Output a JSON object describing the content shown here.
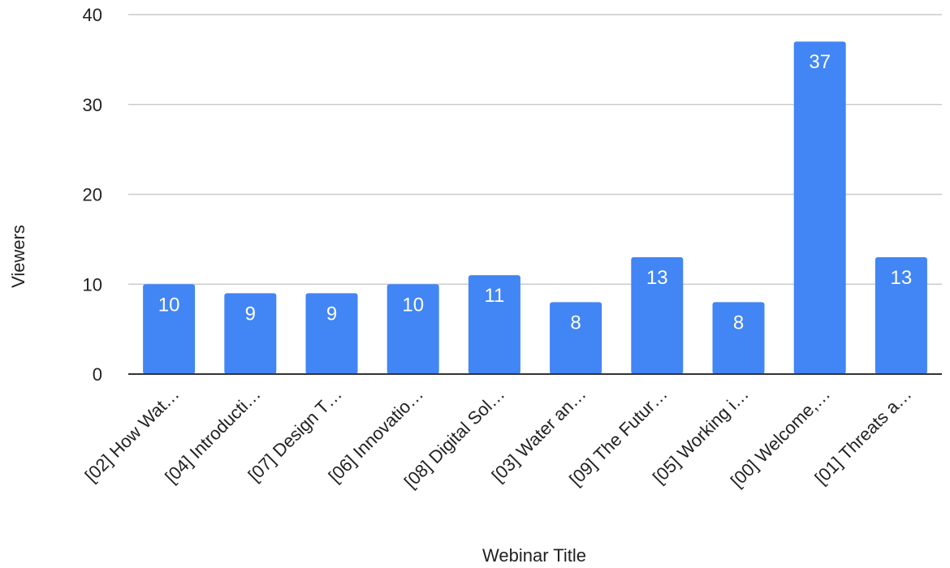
{
  "chart_data": {
    "type": "bar",
    "title": "",
    "xlabel": "Webinar Title",
    "ylabel": "Viewers",
    "ylim": [
      0,
      40
    ],
    "yticks": [
      0,
      10,
      20,
      30,
      40
    ],
    "grid": true,
    "categories": [
      "[02] How Wat…",
      "[04] Introducti…",
      "[07] Design T…",
      "[06] Innovatio…",
      "[08] Digital Sol…",
      "[03] Water an…",
      "[09] The Futur…",
      "[05] Working i…",
      "[00] Welcome,…",
      "[01] Threats a…"
    ],
    "values": [
      10,
      9,
      9,
      10,
      11,
      8,
      13,
      8,
      37,
      13
    ],
    "bar_color": "#4285f4",
    "gridline_color": "#cccccc",
    "baseline_color": "#333333"
  }
}
